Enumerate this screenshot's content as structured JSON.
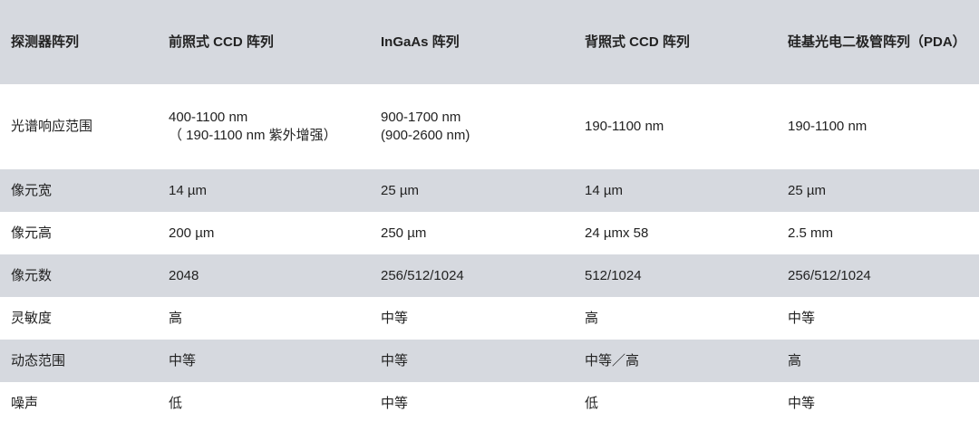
{
  "table": {
    "header": [
      "探测器阵列",
      "前照式 CCD 阵列",
      "InGaAs 阵列",
      "背照式 CCD 阵列",
      "硅基光电二极管阵列（PDA）"
    ],
    "rows": [
      [
        "光谱响应范围",
        [
          "400-1100 nm",
          "（ 190-1100 nm 紫外增强）"
        ],
        [
          "900-1700 nm",
          "(900-2600 nm)"
        ],
        "190-1100 nm",
        "190-1100 nm"
      ],
      [
        "像元宽",
        "14 µm",
        "25 µm",
        "14 µm",
        "25 µm"
      ],
      [
        "像元高",
        "200 µm",
        "250 µm",
        "24 µmx 58",
        "2.5 mm"
      ],
      [
        "像元数",
        "2048",
        "256/512/1024",
        "512/1024",
        "256/512/1024"
      ],
      [
        "灵敏度",
        "高",
        "中等",
        "高",
        "中等"
      ],
      [
        "动态范围",
        "中等",
        "中等",
        "中等／高",
        "高"
      ],
      [
        "噪声",
        "低",
        "中等",
        "低",
        "中等"
      ]
    ]
  }
}
